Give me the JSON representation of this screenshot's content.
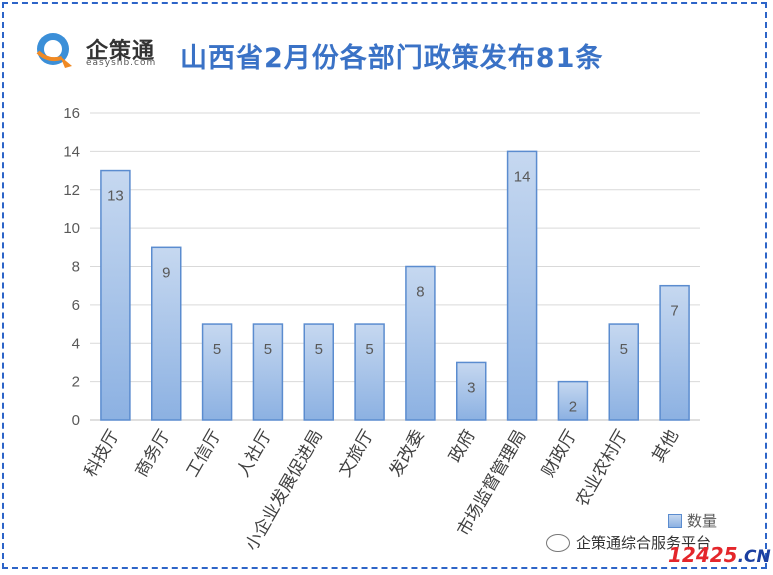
{
  "header": {
    "logo_name": "企策通",
    "logo_domain": "easyshb.com",
    "title": "山西省2月份各部门政策发布81条"
  },
  "chart_data": {
    "type": "bar",
    "title": "山西省2月份各部门政策发布81条",
    "categories": [
      "科技厅",
      "商务厅",
      "工信厅",
      "人社厅",
      "小企业发展促进局",
      "文旅厅",
      "发改委",
      "政府",
      "市场监督管理局",
      "财政厅",
      "农业农村厅",
      "其他"
    ],
    "series": [
      {
        "name": "数量",
        "values": [
          13,
          9,
          5,
          5,
          5,
          5,
          8,
          3,
          14,
          2,
          5,
          7
        ]
      }
    ],
    "ylim": [
      0,
      16
    ],
    "yticks": [
      0,
      2,
      4,
      6,
      8,
      10,
      12,
      14,
      16
    ],
    "grid": true,
    "legend_position": "bottom-right",
    "colors": {
      "bar_fill_top": "#c6d8f0",
      "bar_fill_bottom": "#8cb1e2",
      "bar_stroke": "#5b8ccf"
    }
  },
  "watermark": {
    "account": "企策通综合服务平台",
    "site_number": "12425",
    "site_tld": ".CN"
  }
}
